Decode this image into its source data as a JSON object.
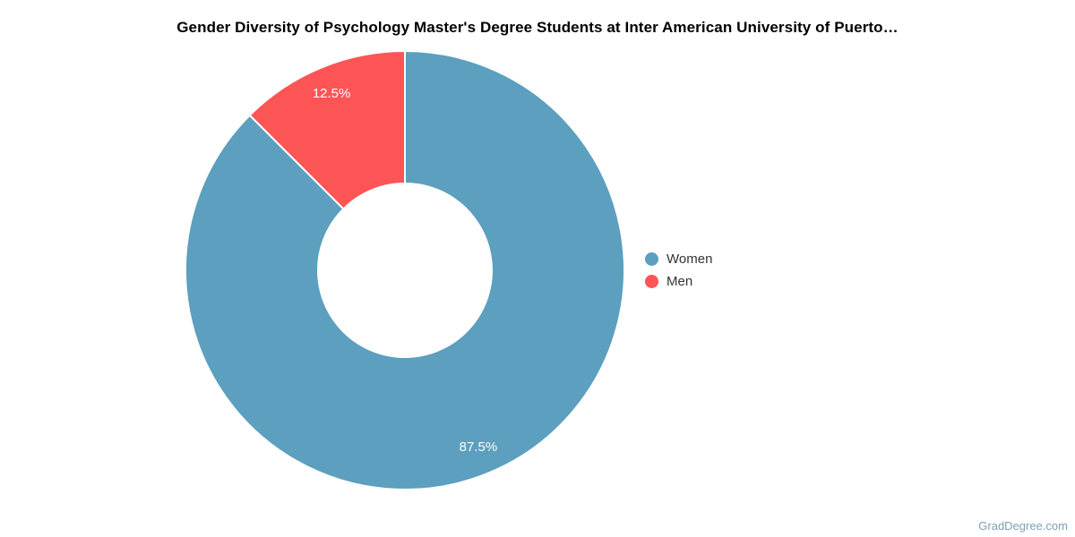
{
  "title": "Gender Diversity of Psychology Master's Degree Students at Inter American University of Puerto…",
  "watermark": "GradDegree.com",
  "colors": {
    "background": "#ffffff",
    "title_text": "#000000",
    "legend_text": "#333333",
    "slice_label_text": "#ffffff",
    "watermark_text": "#7FA0B2",
    "women": "#5C9FBE",
    "men": "#FD5456"
  },
  "legend": {
    "position": "right",
    "items": [
      {
        "label": "Women",
        "color": "#5C9FBE"
      },
      {
        "label": "Men",
        "color": "#FD5456"
      }
    ]
  },
  "chart_data": {
    "type": "pie",
    "donut": true,
    "title": "Gender Diversity of Psychology Master's Degree Students at Inter American University of Puerto…",
    "categories": [
      "Women",
      "Men"
    ],
    "values": [
      87.5,
      12.5
    ],
    "slice_labels": [
      "87.5%",
      "12.5%"
    ],
    "colors": [
      "#5C9FBE",
      "#FD5456"
    ],
    "start_angle_deg": 0,
    "direction": "clockwise",
    "inner_radius_ratio": 0.4,
    "legend_position": "right",
    "background": "#ffffff"
  }
}
